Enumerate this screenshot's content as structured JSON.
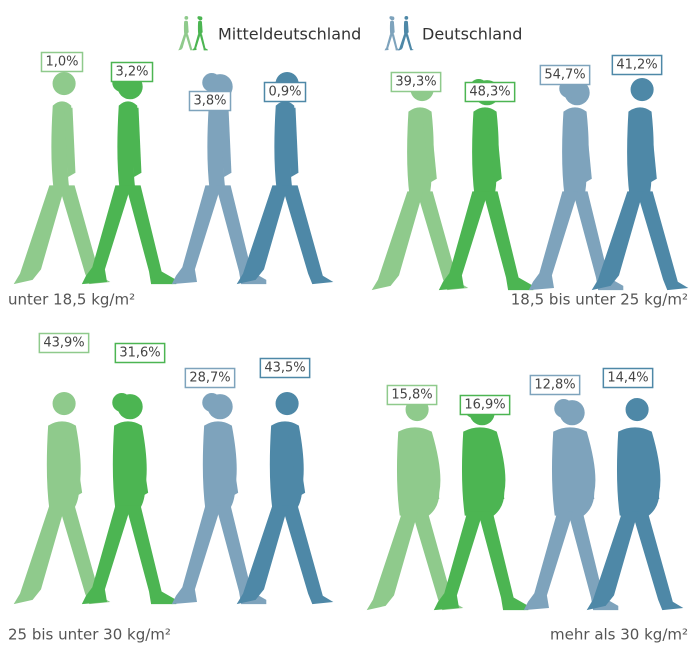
{
  "chart_data": {
    "type": "pictogram",
    "categories": [
      "unter 18,5 kg/m²",
      "18,5 bis unter 25 kg/m²",
      "25 bis unter 30 kg/m²",
      "mehr als 30 kg/m²"
    ],
    "series": [
      {
        "name": "Mitteldeutschland",
        "colors": [
          "#8fca8c",
          "#4cb552"
        ],
        "values": [
          [
            1.0,
            3.2
          ],
          [
            39.3,
            48.3
          ],
          [
            43.9,
            31.6
          ],
          [
            15.8,
            16.9
          ]
        ],
        "value_labels": [
          [
            "1,0%",
            "3,2%"
          ],
          [
            "39,3%",
            "48,3%"
          ],
          [
            "43,9%",
            "31,6%"
          ],
          [
            "15,8%",
            "16,9%"
          ]
        ]
      },
      {
        "name": "Deutschland",
        "colors": [
          "#7ea3bc",
          "#4e88a7"
        ],
        "values": [
          [
            3.8,
            0.9
          ],
          [
            54.7,
            41.2
          ],
          [
            28.7,
            43.5
          ],
          [
            12.8,
            14.4
          ]
        ],
        "value_labels": [
          [
            "3,8%",
            "0,9%"
          ],
          [
            "54,7%",
            "41,2%"
          ],
          [
            "28,7%",
            "43,5%"
          ],
          [
            "12,8%",
            "14,4%"
          ]
        ]
      }
    ]
  }
}
